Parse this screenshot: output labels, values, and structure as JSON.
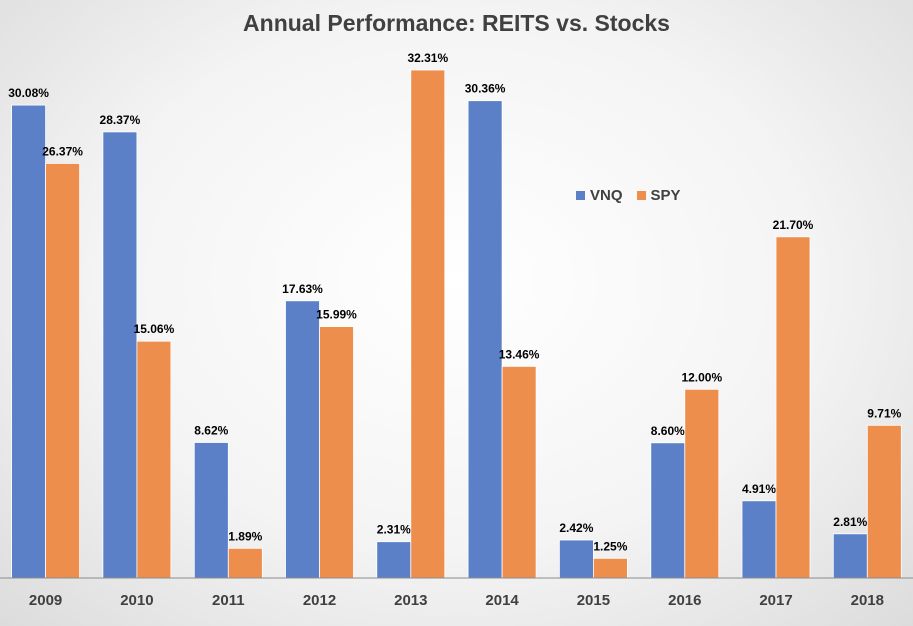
{
  "chart_data": {
    "type": "bar",
    "title": "Annual Performance: REITS vs. Stocks",
    "xlabel": "",
    "ylabel": "",
    "categories": [
      "2009",
      "2010",
      "2011",
      "2012",
      "2013",
      "2014",
      "2015",
      "2016",
      "2017",
      "2018"
    ],
    "series": [
      {
        "name": "VNQ",
        "color": "#5b80c8",
        "values": [
          30.08,
          28.37,
          8.62,
          17.63,
          2.31,
          30.36,
          2.42,
          8.6,
          4.91,
          2.81
        ],
        "labels": [
          "30.08%",
          "28.37%",
          "8.62%",
          "17.63%",
          "2.31%",
          "30.36%",
          "2.42%",
          "8.60%",
          "4.91%",
          "2.81%"
        ]
      },
      {
        "name": "SPY",
        "color": "#ed8e4d",
        "values": [
          26.37,
          15.06,
          1.89,
          15.99,
          32.31,
          13.46,
          1.25,
          12.0,
          21.7,
          9.71
        ],
        "labels": [
          "26.37%",
          "15.06%",
          "1.89%",
          "15.99%",
          "32.31%",
          "13.46%",
          "1.25%",
          "12.00%",
          "21.70%",
          "9.71%"
        ]
      }
    ],
    "ylim": [
      0,
      32.31
    ],
    "grid": false,
    "legend_position": "right-middle"
  }
}
